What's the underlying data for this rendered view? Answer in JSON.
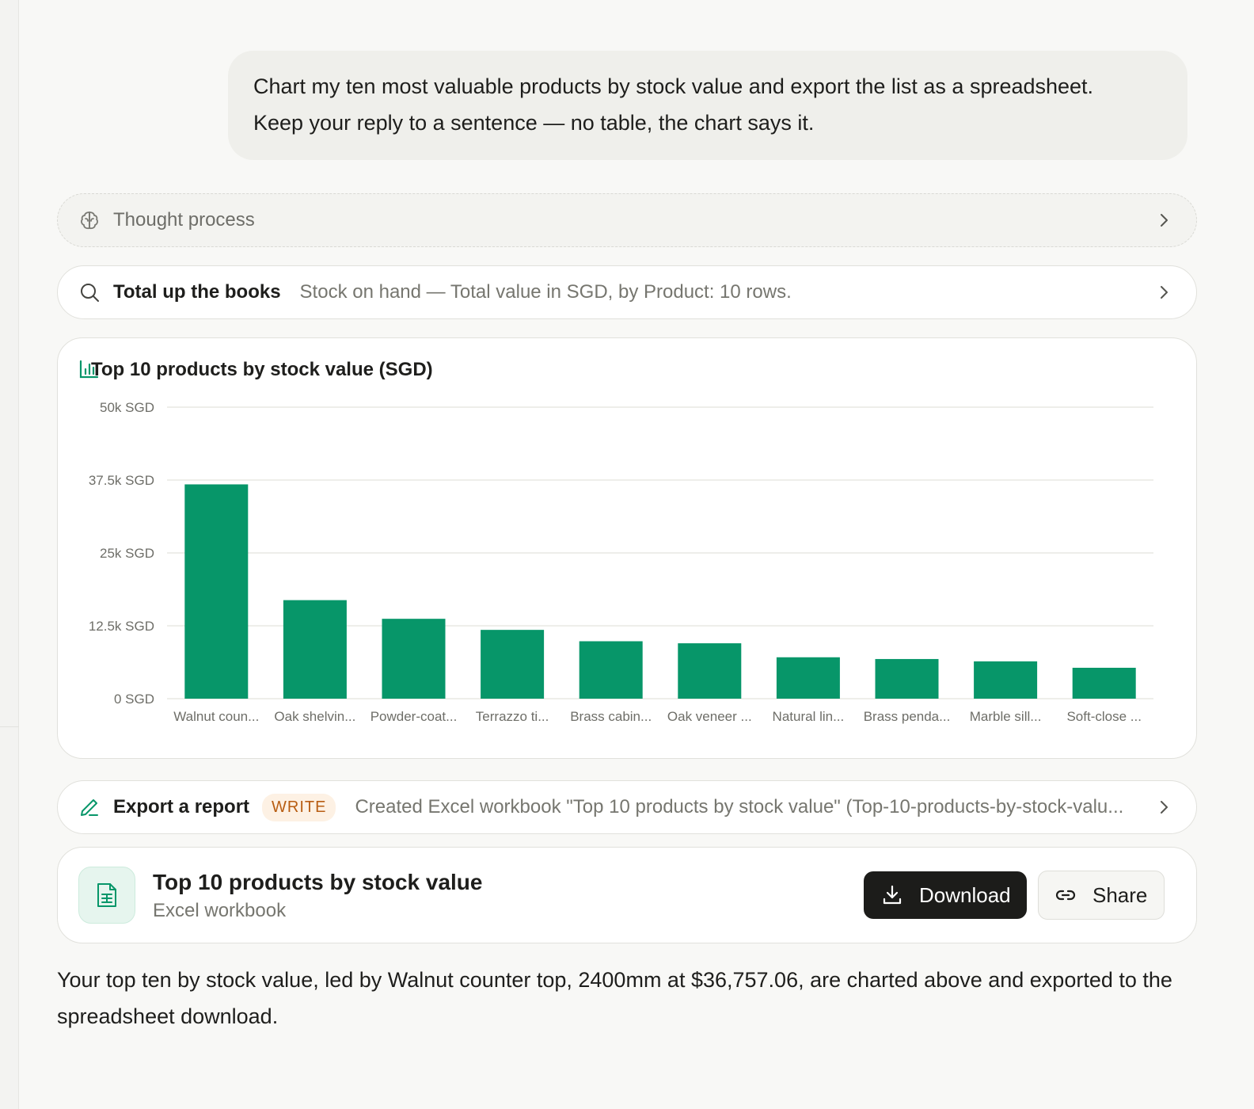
{
  "user_message": {
    "line1": "Chart my ten most valuable products by stock value and export the list as a spreadsheet.",
    "line2": "Keep your reply to a sentence — no table, the chart says it."
  },
  "thought": {
    "label": "Thought process",
    "icon": "brain-icon"
  },
  "tool_call": {
    "title": "Total up the books",
    "description": "Stock on hand — Total value in SGD, by Product: 10 rows.",
    "icon": "search-icon"
  },
  "chart_card": {
    "title": "Top 10 products by stock value (SGD)",
    "icon": "bar-chart-icon"
  },
  "chart_data": {
    "type": "bar",
    "title": "Top 10 products by stock value (SGD)",
    "categories": [
      "Walnut coun...",
      "Oak shelvin...",
      "Powder-coat...",
      "Terrazzo ti...",
      "Brass cabin...",
      "Oak veneer ...",
      "Natural lin...",
      "Brass penda...",
      "Marble sill...",
      "Soft-close ..."
    ],
    "values": [
      36757.06,
      16900,
      13700,
      11800,
      9850,
      9500,
      7100,
      6800,
      6400,
      5300
    ],
    "yticks": [
      0,
      12500,
      25000,
      37500,
      50000
    ],
    "ytick_labels": [
      "0 SGD",
      "12.5k SGD",
      "25k SGD",
      "37.5k SGD",
      "50k SGD"
    ],
    "ylim": [
      0,
      50000
    ],
    "grid": true,
    "bar_color": "#079669",
    "grid_color": "#e8e8e4"
  },
  "export_call": {
    "title": "Export a report",
    "badge": "WRITE",
    "description": "Created Excel workbook \"Top 10 products by stock value\" (Top-10-products-by-stock-valu...",
    "icon": "pencil-icon"
  },
  "file": {
    "name": "Top 10 products by stock value",
    "type": "Excel workbook",
    "download_label": "Download",
    "share_label": "Share"
  },
  "reply": "Your top ten by stock value, led by Walnut counter top, 2400mm at $36,757.06, are charted above and exported to the spreadsheet download.",
  "colors": {
    "accent_green": "#079669",
    "dark_button": "#1c1c1a",
    "badge_text": "#b85d12"
  }
}
